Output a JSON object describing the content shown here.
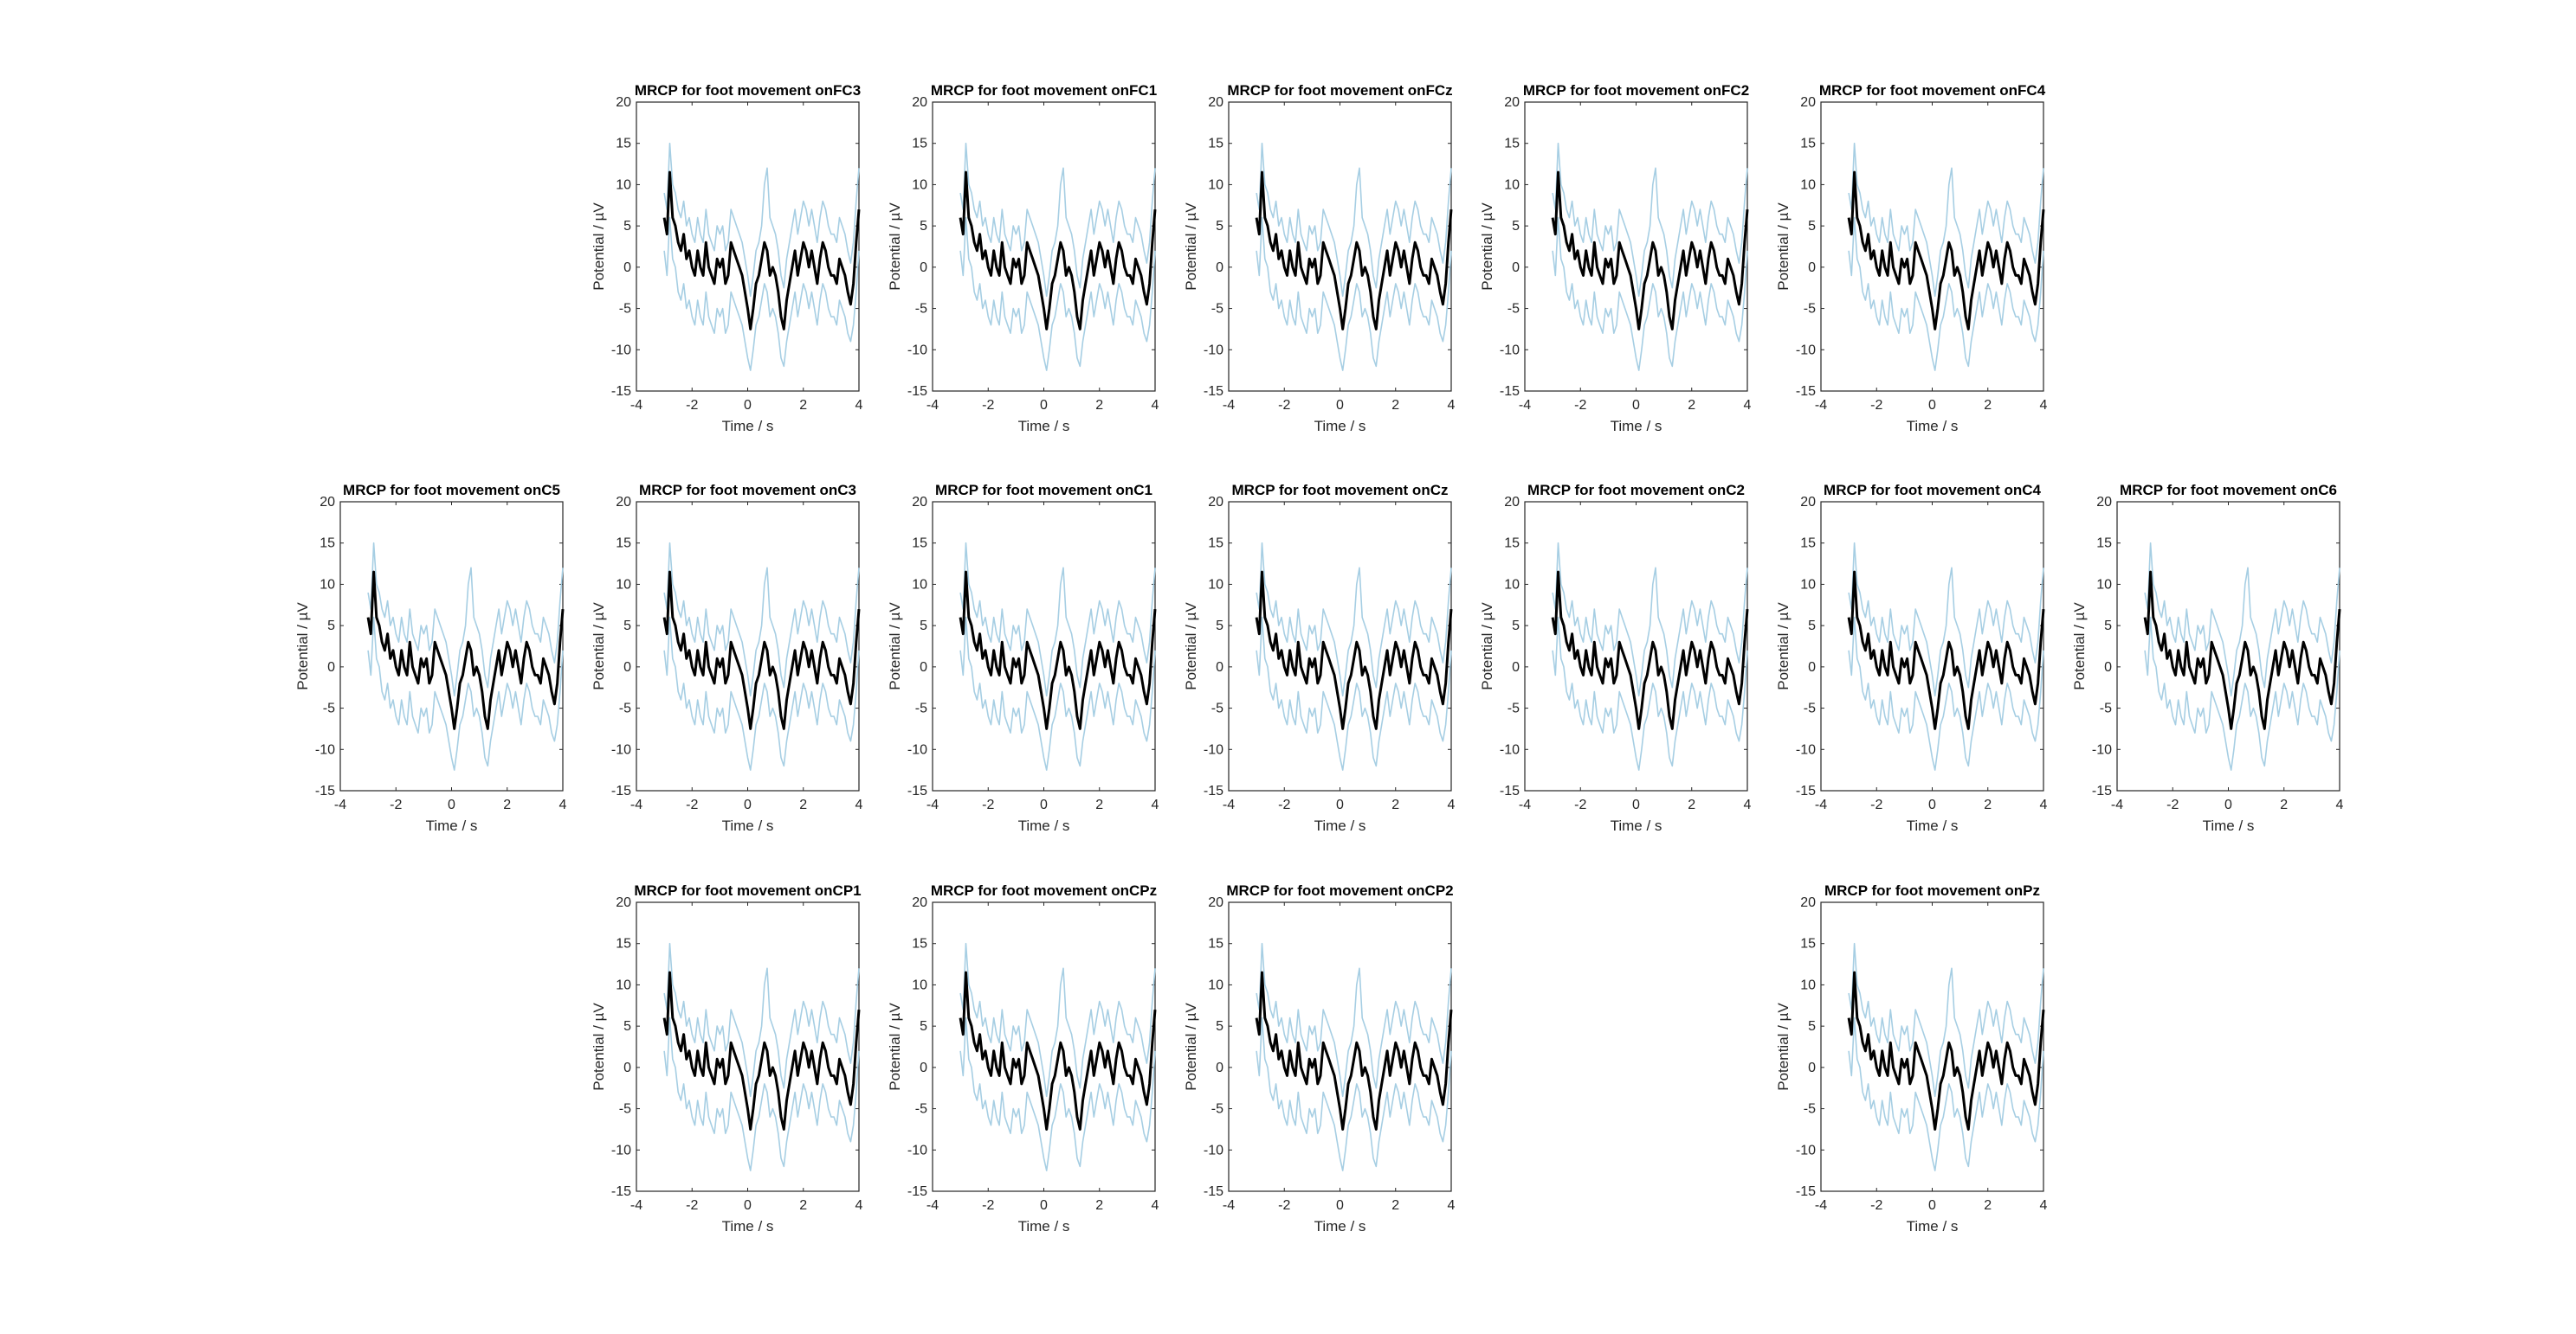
{
  "chart_data": {
    "type": "line",
    "xlabel": "Time / s",
    "ylabel": "Potential / µV",
    "xlim": [
      -4,
      4
    ],
    "ylim": [
      -15,
      20
    ],
    "xticks": [
      -4,
      -2,
      0,
      2,
      4
    ],
    "yticks": [
      -15,
      -10,
      -5,
      0,
      5,
      10,
      15,
      20
    ],
    "colors": {
      "mean": "#000000",
      "band": "#a6cee3",
      "axes": "#262626"
    },
    "x": [
      -3.0,
      -2.9,
      -2.8,
      -2.7,
      -2.6,
      -2.5,
      -2.4,
      -2.3,
      -2.2,
      -2.1,
      -2.0,
      -1.9,
      -1.8,
      -1.7,
      -1.6,
      -1.5,
      -1.4,
      -1.3,
      -1.2,
      -1.1,
      -1.0,
      -0.9,
      -0.8,
      -0.7,
      -0.6,
      -0.5,
      -0.4,
      -0.3,
      -0.2,
      -0.1,
      0.0,
      0.1,
      0.2,
      0.3,
      0.4,
      0.5,
      0.6,
      0.7,
      0.8,
      0.9,
      1.0,
      1.1,
      1.2,
      1.3,
      1.4,
      1.5,
      1.6,
      1.7,
      1.8,
      1.9,
      2.0,
      2.1,
      2.2,
      2.3,
      2.4,
      2.5,
      2.6,
      2.7,
      2.8,
      2.9,
      3.0,
      3.1,
      3.2,
      3.3,
      3.4,
      3.5,
      3.6,
      3.7,
      3.8,
      3.9,
      4.0
    ],
    "mean": [
      6,
      4,
      11.5,
      6,
      5,
      3,
      2,
      4,
      1,
      2,
      0,
      -1,
      2,
      0,
      -1,
      3,
      0,
      -1,
      -2,
      1,
      0,
      1,
      -2,
      -1,
      3,
      2,
      1,
      0,
      -1,
      -3,
      -5,
      -7.5,
      -5,
      -2,
      -1,
      1,
      3,
      2,
      -1,
      0,
      -1,
      -3,
      -6,
      -7.5,
      -4,
      -2,
      0,
      2,
      -1,
      1,
      3,
      2,
      0,
      2,
      0,
      -2,
      1,
      3,
      2,
      0,
      -1,
      -1,
      -2,
      1,
      0,
      -1,
      -3,
      -4.5,
      -2,
      3,
      7
    ],
    "series": [
      {
        "name": "",
        "values": [
          9,
          7,
          15,
          10,
          9,
          7,
          6,
          8,
          5,
          6,
          4,
          3,
          6,
          4,
          3,
          7,
          4,
          3,
          2,
          5,
          4,
          5,
          2,
          3,
          7,
          6,
          5,
          4,
          3,
          1,
          -1,
          -3.5,
          -1,
          2,
          3,
          5,
          10,
          12,
          6,
          5,
          4,
          2,
          -1,
          -2.5,
          1,
          3,
          5,
          7,
          4,
          6,
          8,
          7,
          5,
          7,
          5,
          3,
          6,
          8,
          7,
          5,
          4,
          4,
          3,
          6,
          5,
          4,
          2,
          0.5,
          3,
          8,
          12
        ]
      },
      {
        "name": "",
        "values": [
          2,
          -1,
          6,
          1,
          0,
          -3,
          -4,
          -2,
          -5,
          -4,
          -6,
          -7,
          -4,
          -6,
          -7,
          -3,
          -6,
          -7,
          -8,
          -5,
          -6,
          -5,
          -8,
          -7,
          -3,
          -4,
          -5,
          -6,
          -7,
          -9,
          -11,
          -12.5,
          -10,
          -7,
          -6,
          -4,
          -2,
          -3,
          -6,
          -5,
          -6,
          -8,
          -11,
          -12,
          -9,
          -7,
          -5,
          -3,
          -6,
          -4,
          -2,
          -3,
          -5,
          -3,
          -5,
          -7,
          -4,
          -2,
          -3,
          -5,
          -6,
          -6,
          -7,
          -4,
          -5,
          -6,
          -8,
          -9,
          -7,
          -3,
          2
        ]
      }
    ],
    "panels": [
      {
        "title": "MRCP for foot movement onFC3"
      },
      {
        "title": "MRCP for foot movement onFC1"
      },
      {
        "title": "MRCP for foot movement onFCz"
      },
      {
        "title": "MRCP for foot movement onFC2"
      },
      {
        "title": "MRCP for foot movement onFC4"
      },
      {
        "title": "MRCP for foot movement onC5"
      },
      {
        "title": "MRCP for foot movement onC3"
      },
      {
        "title": "MRCP for foot movement onC1"
      },
      {
        "title": "MRCP for foot movement onCz"
      },
      {
        "title": "MRCP for foot movement onC2"
      },
      {
        "title": "MRCP for foot movement onC4"
      },
      {
        "title": "MRCP for foot movement onC6"
      },
      {
        "title": "MRCP for foot movement onCP1"
      },
      {
        "title": "MRCP for foot movement onCPz"
      },
      {
        "title": "MRCP for foot movement onCP2"
      },
      {
        "title": "MRCP for foot movement onPz"
      }
    ]
  }
}
